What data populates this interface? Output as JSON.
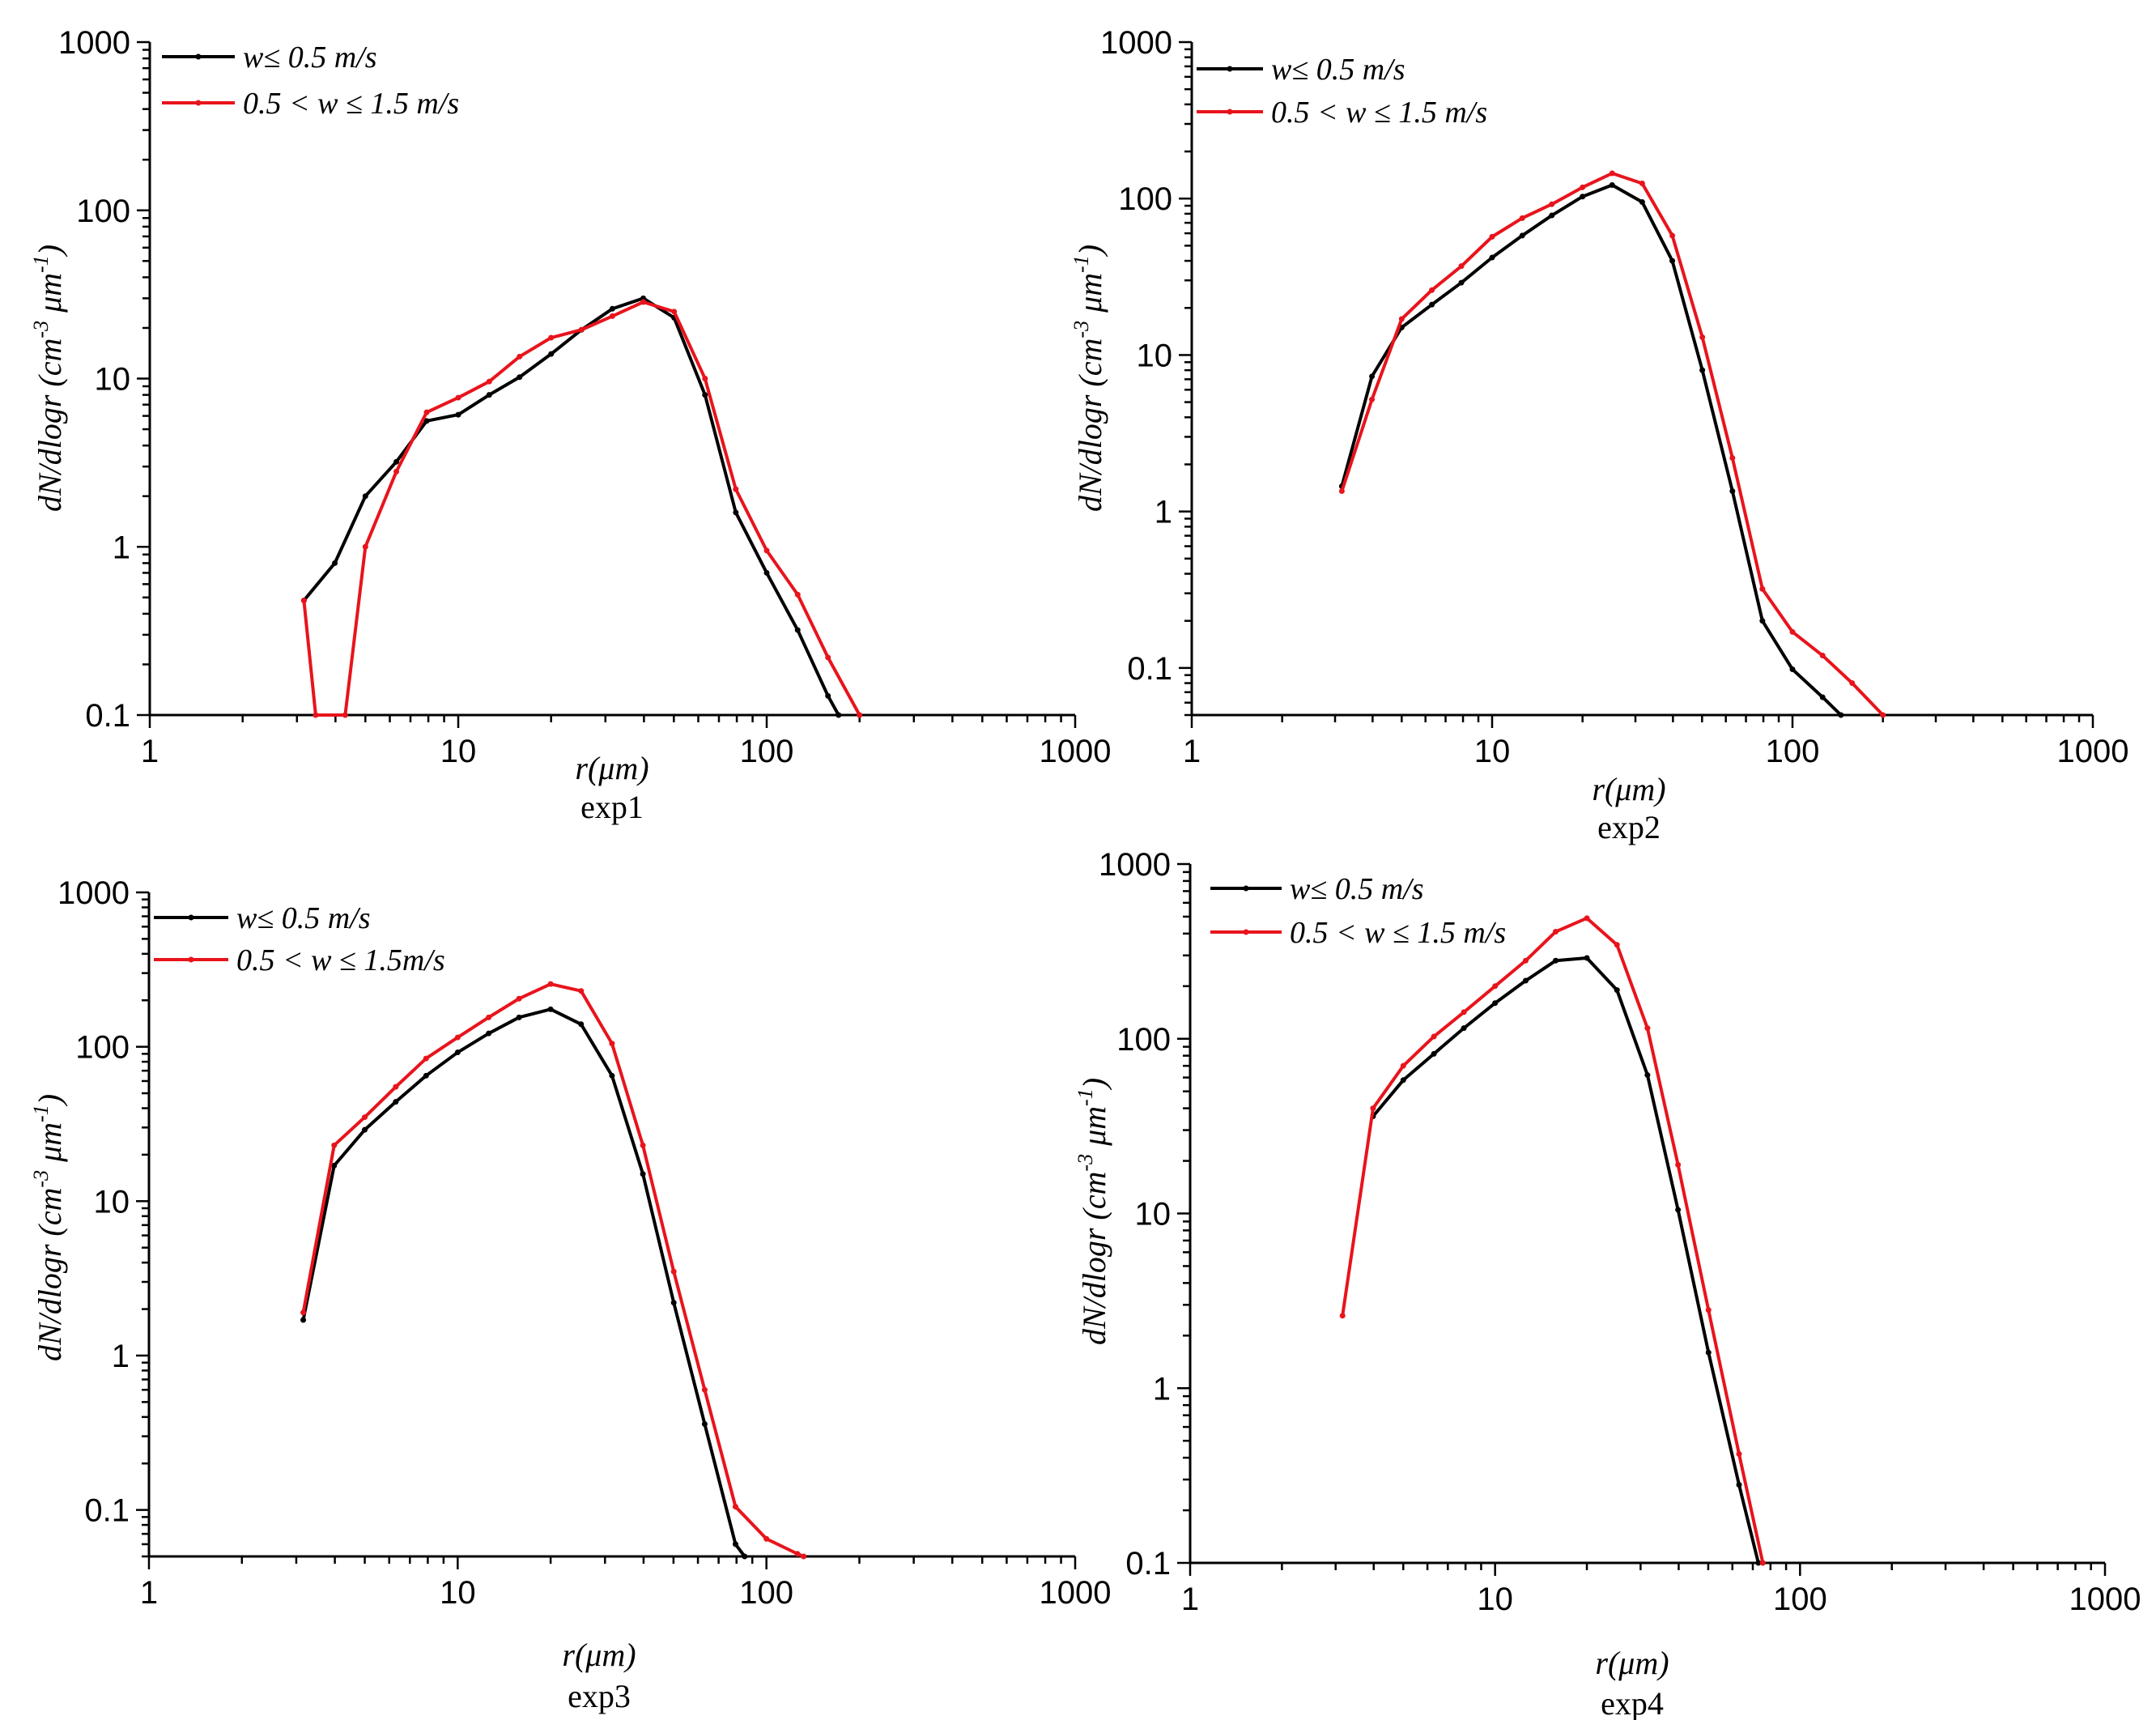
{
  "figure": {
    "colors": {
      "series_black": "#000000",
      "series_red": "#e8141c",
      "axes": "#000000"
    },
    "xlabel_main": "r",
    "xlabel_unit": "(μm)",
    "ylabel_main": "dN/dlogr",
    "ylabel_unit": "(cm",
    "ylabel_exp1": "-3",
    "ylabel_sep": " μm",
    "ylabel_exp2": "-1",
    "ylabel_close": ")"
  },
  "chart_data": [
    {
      "type": "line",
      "panel": "exp1",
      "caption": "exp1",
      "xscale": "log",
      "yscale": "log",
      "xlim": [
        1,
        1000
      ],
      "ylim": [
        0.1,
        1000
      ],
      "x_ticks": [
        "1",
        "10",
        "100",
        "1000"
      ],
      "y_ticks": [
        "0.1",
        "1",
        "10",
        "100",
        "1000"
      ],
      "legend_location": "top-left",
      "series": [
        {
          "name": "w≤ 0.5 m/s",
          "color": "#000000",
          "x": [
            3.16,
            3.98,
            5.0,
            6.3,
            7.9,
            10,
            12.6,
            15.8,
            20,
            25.1,
            31.6,
            39.8,
            50.1,
            63.1,
            79.4,
            100,
            126,
            158,
            171
          ],
          "y": [
            0.48,
            0.8,
            2.0,
            3.2,
            5.6,
            6.1,
            8.0,
            10.2,
            14.0,
            19.5,
            26.0,
            30.0,
            23.0,
            8.0,
            1.6,
            0.7,
            0.32,
            0.13,
            0.1
          ]
        },
        {
          "name": "0.5 < w ≤ 1.5 m/s",
          "color": "#e8141c",
          "x": [
            3.16,
            3.45,
            4.3,
            5.0,
            6.3,
            7.9,
            10,
            12.6,
            15.8,
            20,
            25.1,
            31.6,
            39.8,
            50.1,
            63.1,
            79.4,
            100,
            126,
            158,
            200
          ],
          "y": [
            0.48,
            0.1,
            0.1,
            1.0,
            2.8,
            6.3,
            7.7,
            9.6,
            13.5,
            17.5,
            19.5,
            23.5,
            28.5,
            25.0,
            10.0,
            2.2,
            0.95,
            0.52,
            0.22,
            0.1
          ]
        }
      ]
    },
    {
      "type": "line",
      "panel": "exp2",
      "caption": "exp2",
      "xscale": "log",
      "yscale": "log",
      "xlim": [
        1,
        1000
      ],
      "ylim": [
        0.05,
        1000
      ],
      "x_ticks": [
        "1",
        "10",
        "100",
        "1000"
      ],
      "y_ticks": [
        "0.1",
        "1",
        "10",
        "100",
        "1000"
      ],
      "legend_location": "top-left",
      "series": [
        {
          "name": "w≤ 0.5 m/s",
          "color": "#000000",
          "x": [
            3.16,
            3.98,
            5.0,
            6.3,
            7.9,
            10,
            12.6,
            15.8,
            20,
            25.1,
            31.6,
            39.8,
            50.1,
            63.1,
            79.4,
            100,
            126,
            145
          ],
          "y": [
            1.45,
            7.3,
            15.0,
            21.0,
            29.0,
            42.0,
            58.0,
            78.0,
            103.0,
            122.0,
            95.0,
            40.0,
            8.0,
            1.35,
            0.2,
            0.098,
            0.065,
            0.05
          ]
        },
        {
          "name": "0.5 < w ≤ 1.5 m/s",
          "color": "#e8141c",
          "x": [
            3.16,
            3.98,
            5.0,
            6.3,
            7.9,
            10,
            12.6,
            15.8,
            20,
            25.1,
            31.6,
            39.8,
            50.1,
            63.1,
            79.4,
            100,
            126,
            158,
            200
          ],
          "y": [
            1.35,
            5.2,
            17.0,
            26.0,
            37.0,
            57.0,
            75.0,
            92.0,
            118.0,
            145.0,
            125.0,
            58.0,
            13.0,
            2.2,
            0.32,
            0.17,
            0.12,
            0.08,
            0.05
          ]
        }
      ]
    },
    {
      "type": "line",
      "panel": "exp3",
      "caption": "exp3",
      "xscale": "log",
      "yscale": "log",
      "xlim": [
        1,
        1000
      ],
      "ylim": [
        0.05,
        1000
      ],
      "x_ticks": [
        "1",
        "10",
        "100",
        "1000"
      ],
      "y_ticks": [
        "0.1",
        "1",
        "10",
        "100",
        "1000"
      ],
      "legend_location": "top-left",
      "series": [
        {
          "name": "w≤ 0.5 m/s",
          "color": "#000000",
          "x": [
            3.16,
            3.98,
            5.0,
            6.3,
            7.9,
            10,
            12.6,
            15.8,
            20,
            25.1,
            31.6,
            39.8,
            50.1,
            63.1,
            79.4,
            85
          ],
          "y": [
            1.7,
            17.0,
            29.0,
            44.0,
            65.0,
            92.0,
            122.0,
            155.0,
            175.0,
            140.0,
            65.0,
            15.0,
            2.2,
            0.36,
            0.06,
            0.05
          ]
        },
        {
          "name": "0.5 < w ≤ 1.5m/s",
          "color": "#e8141c",
          "x": [
            3.16,
            3.98,
            5.0,
            6.3,
            7.9,
            10,
            12.6,
            15.8,
            20,
            25.1,
            31.6,
            39.8,
            50.1,
            63.1,
            79.4,
            100,
            126,
            132
          ],
          "y": [
            1.9,
            23.0,
            35.0,
            55.0,
            84.0,
            115.0,
            155.0,
            205.0,
            255.0,
            230.0,
            105.0,
            23.0,
            3.5,
            0.6,
            0.105,
            0.065,
            0.052,
            0.05
          ]
        }
      ]
    },
    {
      "type": "line",
      "panel": "exp4",
      "caption": "exp4",
      "xscale": "log",
      "yscale": "log",
      "xlim": [
        1,
        1000
      ],
      "ylim": [
        0.1,
        1000
      ],
      "x_ticks": [
        "1",
        "10",
        "100",
        "1000"
      ],
      "y_ticks": [
        "0.1",
        "1",
        "10",
        "100",
        "1000"
      ],
      "legend_location": "top-left",
      "series": [
        {
          "name": "w≤ 0.5 m/s",
          "color": "#000000",
          "x": [
            3.98,
            5.0,
            6.3,
            7.9,
            10,
            12.6,
            15.8,
            20,
            25.1,
            31.6,
            39.8,
            50.1,
            63.1,
            73
          ],
          "y": [
            36.0,
            58.0,
            82.0,
            115.0,
            160.0,
            215.0,
            280.0,
            290.0,
            190.0,
            62.0,
            10.5,
            1.6,
            0.28,
            0.1
          ]
        },
        {
          "name": "0.5 < w ≤ 1.5 m/s",
          "color": "#e8141c",
          "x": [
            3.16,
            3.98,
            5.0,
            6.3,
            7.9,
            10,
            12.6,
            15.8,
            20,
            25.1,
            31.6,
            39.8,
            50.1,
            63.1,
            75.5
          ],
          "y": [
            2.6,
            40.0,
            70.0,
            103.0,
            142.0,
            200.0,
            280.0,
            410.0,
            490.0,
            345.0,
            115.0,
            19.0,
            2.8,
            0.42,
            0.1
          ]
        }
      ]
    }
  ]
}
